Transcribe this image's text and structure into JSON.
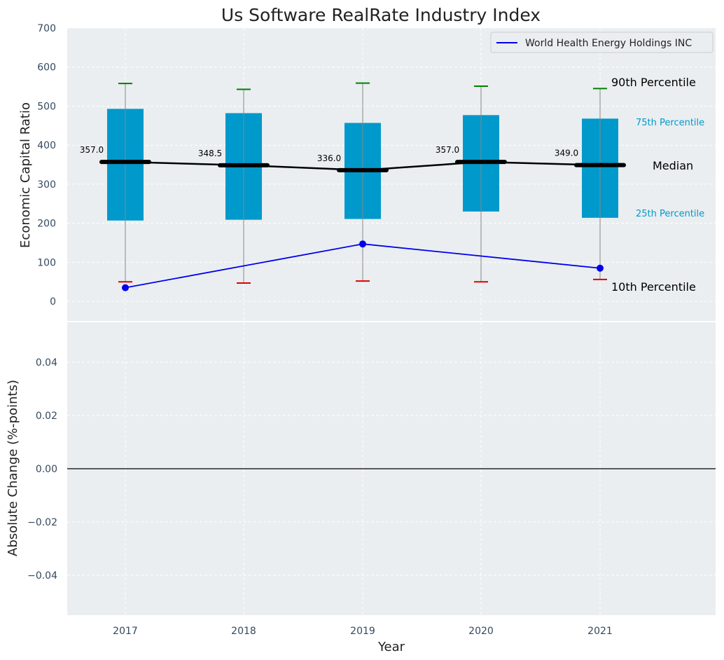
{
  "chart_data": [
    {
      "type": "box",
      "title": "Us Software RealRate Industry Index",
      "xlabel": "",
      "ylabel": "Economic Capital Ratio",
      "ylim": [
        -50,
        700
      ],
      "yticks": [
        0,
        100,
        200,
        300,
        400,
        500,
        600,
        700
      ],
      "categories": [
        "2017",
        "2018",
        "2019",
        "2020",
        "2021"
      ],
      "grid": true,
      "legend": {
        "position": "top-right",
        "entries": [
          "World Health Energy Holdings INC"
        ]
      },
      "series": [
        {
          "name": "percentiles",
          "p10": [
            50,
            47,
            52,
            50,
            56
          ],
          "p25": [
            207,
            209,
            211,
            230,
            214
          ],
          "median": [
            357.0,
            348.5,
            336.0,
            357.0,
            349.0
          ],
          "p75": [
            493,
            482,
            457,
            477,
            468
          ],
          "p90": [
            558,
            543,
            559,
            551,
            545
          ]
        },
        {
          "name": "World Health Energy Holdings INC",
          "x": [
            "2017",
            "2019",
            "2021"
          ],
          "values": [
            35,
            147,
            85
          ]
        }
      ],
      "annotations": {
        "p90": "90th Percentile",
        "p75": "75th Percentile",
        "median": "Median",
        "p25": "25th Percentile",
        "p10": "10th Percentile"
      },
      "median_labels": [
        "357.0",
        "348.5",
        "336.0",
        "357.0",
        "349.0"
      ]
    },
    {
      "type": "line",
      "xlabel": "Year",
      "ylabel": "Absolute Change (%-points)",
      "ylim": [
        -0.055,
        0.055
      ],
      "yticks": [
        -0.04,
        -0.02,
        0.0,
        0.02,
        0.04
      ],
      "ytick_labels": [
        "−0.04",
        "−0.02",
        "0.00",
        "0.02",
        "0.04"
      ],
      "categories": [
        "2017",
        "2018",
        "2019",
        "2020",
        "2021"
      ],
      "grid": true,
      "zero_line": 0
    }
  ],
  "colors": {
    "panel": "#eaeef0",
    "box": "#0099cc",
    "median": "#000000",
    "company": "#0000ee",
    "p90_cap": "#008000",
    "p10_cap": "#dd0000",
    "whisker": "#888888",
    "tick": "#34495e",
    "percentile_text": "#0099cc"
  }
}
